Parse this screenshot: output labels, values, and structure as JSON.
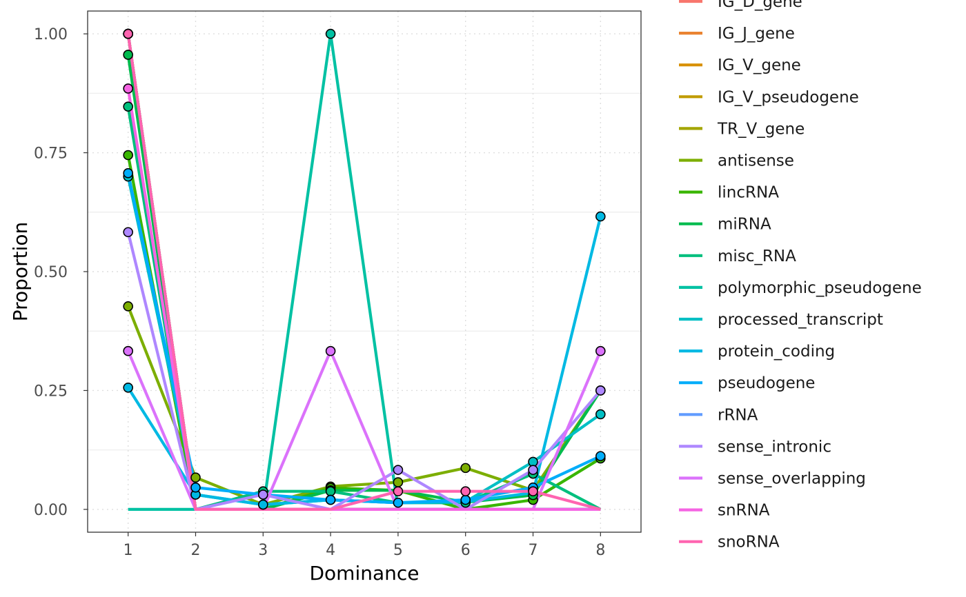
{
  "chart_data": {
    "type": "line",
    "title": "",
    "xlabel": "Dominance",
    "ylabel": "Proportion",
    "x": [
      1,
      2,
      3,
      4,
      5,
      6,
      7,
      8
    ],
    "xlim": [
      0.4,
      8.6
    ],
    "ylim": [
      -0.048,
      1.048
    ],
    "y_ticks": [
      0.0,
      0.25,
      0.5,
      0.75,
      1.0
    ],
    "y_tick_labels": [
      "0.00",
      "0.25",
      "0.50",
      "0.75",
      "1.00"
    ],
    "x_tick_labels": [
      "1",
      "2",
      "3",
      "4",
      "5",
      "6",
      "7",
      "8"
    ],
    "grid": true,
    "legend_position": "right",
    "series": [
      {
        "name": "IG_D_gene",
        "color": "#F8766D",
        "values": [
          1.0,
          0,
          0,
          0,
          0,
          0,
          0,
          0
        ],
        "markers": [
          0
        ]
      },
      {
        "name": "IG_J_gene",
        "color": "#EA8331",
        "values": [
          1.0,
          0,
          0,
          0,
          0,
          0,
          0,
          0
        ],
        "markers": [
          0
        ]
      },
      {
        "name": "IG_V_gene",
        "color": "#D89000",
        "values": [
          1.0,
          0,
          0,
          0,
          0,
          0,
          0,
          0
        ],
        "markers": [
          0
        ]
      },
      {
        "name": "IG_V_pseudogene",
        "color": "#C09B00",
        "values": [
          1.0,
          0,
          0,
          0,
          0,
          0,
          0,
          0
        ],
        "markers": [
          0
        ]
      },
      {
        "name": "TR_V_gene",
        "color": "#A3A500",
        "values": [
          1.0,
          0,
          0,
          0,
          0,
          0,
          0,
          0
        ],
        "markers": [
          0
        ]
      },
      {
        "name": "antisense",
        "color": "#7CAE00",
        "values": [
          0.427,
          0.067,
          0.01,
          0.048,
          0.057,
          0.087,
          0.04,
          0.25
        ],
        "markers": [
          0,
          1,
          2,
          3,
          4,
          5,
          6,
          7
        ]
      },
      {
        "name": "lincRNA",
        "color": "#39B600",
        "values": [
          0.745,
          0,
          0,
          0.045,
          0.04,
          0,
          0.02,
          0.107
        ],
        "markers": [
          0,
          3,
          6,
          7
        ]
      },
      {
        "name": "miRNA",
        "color": "#00BB4E",
        "values": [
          0.956,
          0,
          0,
          0.04,
          0.04,
          0.015,
          0.03,
          0.25
        ],
        "markers": [
          0,
          3,
          5,
          6
        ]
      },
      {
        "name": "misc_RNA",
        "color": "#00BF7D",
        "values": [
          0.847,
          0,
          0.038,
          0.038,
          0.014,
          0.014,
          0.075,
          0
        ],
        "markers": [
          0,
          2,
          3,
          5,
          6
        ]
      },
      {
        "name": "polymorphic_pseudogene",
        "color": "#00C1A3",
        "values": [
          0,
          0,
          0,
          1.0,
          0,
          0,
          0,
          0
        ],
        "markers": [
          3
        ]
      },
      {
        "name": "processed_transcript",
        "color": "#00BFC4",
        "values": [
          0.7,
          0.031,
          0.01,
          0.02,
          0.014,
          0.016,
          0.1,
          0.2
        ],
        "markers": [
          0,
          1,
          2,
          3,
          6,
          7
        ]
      },
      {
        "name": "protein_coding",
        "color": "#00B9E3",
        "values": [
          0.256,
          0.031,
          0.01,
          0.02,
          0.014,
          0.016,
          0.035,
          0.616
        ],
        "markers": [
          0,
          1,
          2,
          7
        ]
      },
      {
        "name": "pseudogene",
        "color": "#00ADFA",
        "values": [
          0.707,
          0.046,
          0.031,
          0.02,
          0.014,
          0.02,
          0.046,
          0.112
        ],
        "markers": [
          0,
          1,
          2,
          3,
          4,
          5,
          6,
          7
        ]
      },
      {
        "name": "rRNA",
        "color": "#619CFF",
        "values": [
          1.0,
          0,
          0,
          0,
          0,
          0,
          0,
          0
        ],
        "markers": [
          0
        ]
      },
      {
        "name": "sense_intronic",
        "color": "#AE87FF",
        "values": [
          0.583,
          0,
          0.031,
          0,
          0.083,
          0,
          0.083,
          0.25
        ],
        "markers": [
          0,
          2,
          4,
          6,
          7
        ]
      },
      {
        "name": "sense_overlapping",
        "color": "#DB72FB",
        "values": [
          0.333,
          0,
          0,
          0.333,
          0,
          0,
          0,
          0.333
        ],
        "markers": [
          0,
          3,
          7
        ]
      },
      {
        "name": "snRNA",
        "color": "#F564E3",
        "values": [
          0.885,
          0,
          0,
          0,
          0,
          0,
          0,
          0
        ],
        "markers": [
          0
        ]
      },
      {
        "name": "snoRNA",
        "color": "#FF64B0",
        "values": [
          1.0,
          0,
          0,
          0,
          0.038,
          0.038,
          0.038,
          0
        ],
        "markers": [
          0,
          4,
          5,
          6
        ]
      }
    ]
  }
}
